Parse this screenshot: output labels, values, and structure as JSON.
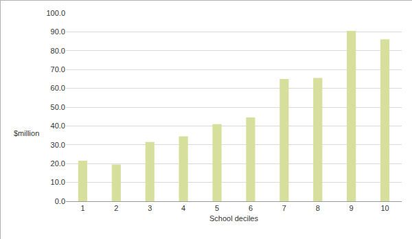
{
  "chart_data": {
    "type": "bar",
    "xlabel": "School deciles",
    "ylabel": "$million",
    "categories": [
      "1",
      "2",
      "3",
      "4",
      "5",
      "6",
      "7",
      "8",
      "9",
      "10"
    ],
    "values": [
      21.5,
      19.5,
      31.5,
      34.5,
      41,
      44.5,
      65,
      65.5,
      90.5,
      86
    ],
    "color": "#d6e09c",
    "ylim": [
      0,
      100
    ],
    "yticks": [
      {
        "value": 0,
        "label": "0.0"
      },
      {
        "value": 10,
        "label": "10.0"
      },
      {
        "value": 20,
        "label": "20.0"
      },
      {
        "value": 30,
        "label": "30.0"
      },
      {
        "value": 40,
        "label": "40.0"
      },
      {
        "value": 50,
        "label": "50.0"
      },
      {
        "value": 60,
        "label": "60.0"
      },
      {
        "value": 70,
        "label": "70.0"
      },
      {
        "value": 80,
        "label": "80.0"
      },
      {
        "value": 90,
        "label": "90.0"
      },
      {
        "value": 100,
        "label": "100.0"
      }
    ],
    "grid": true
  }
}
